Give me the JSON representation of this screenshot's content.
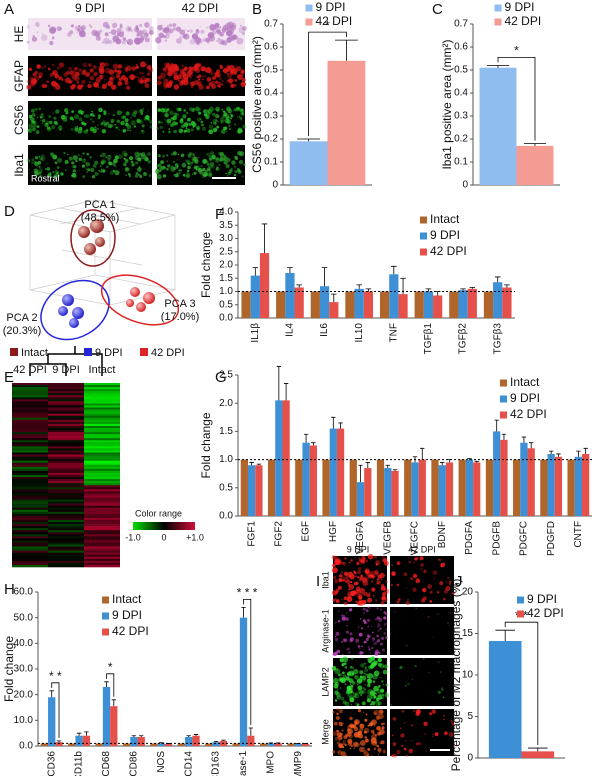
{
  "panel_labels": [
    "A",
    "B",
    "C",
    "D",
    "E",
    "F",
    "G",
    "H",
    "I",
    "J"
  ],
  "panel_a": {
    "columns": [
      "9 DPI",
      "42 DPI"
    ],
    "rows": [
      "HE",
      "GFAP",
      "CS56",
      "Iba1"
    ],
    "note": "Rostral"
  },
  "panel_d": {
    "axes": [
      {
        "name": "PCA 1",
        "share": "(48.5%)"
      },
      {
        "name": "PCA 2",
        "share": "(20.3%)"
      },
      {
        "name": "PCA 3",
        "share": "(17.0%)"
      }
    ],
    "legend": [
      {
        "name": "Intact",
        "color": "#8b1a1a"
      },
      {
        "name": "9 DPI",
        "color": "#2626d9"
      },
      {
        "name": "42 DPI",
        "color": "#e02424"
      }
    ]
  },
  "panel_e": {
    "columns": [
      "42 DPI",
      "9 DPI",
      "Intact"
    ],
    "color_range": "Color range",
    "scale_labels": [
      "-1.0",
      "0",
      "+1.0"
    ]
  },
  "panel_i": {
    "columns": [
      "9 DPI",
      "42 DPI"
    ],
    "rows": [
      "Iba1",
      "Arginase-1",
      "LAMP2",
      "Merge"
    ]
  },
  "chart_data": [
    {
      "type": "bar",
      "ylabel": "CS56 positive area (mm²)",
      "ylim": [
        0,
        0.7
      ],
      "yticks": [
        0,
        0.1,
        0.2,
        0.3,
        0.4,
        0.5,
        0.6,
        0.7
      ],
      "legend": "upper center",
      "significance": "*",
      "series": [
        {
          "name": "9 DPI",
          "color": "#8fbdf0",
          "values": [
            0.19
          ],
          "errors": [
            0.01
          ]
        },
        {
          "name": "42 DPI",
          "color": "#f49b94",
          "values": [
            0.54
          ],
          "errors": [
            0.09
          ]
        }
      ]
    },
    {
      "type": "bar",
      "ylabel": "Iba1 positive area (mm²)",
      "ylim": [
        0,
        0.7
      ],
      "yticks": [
        0,
        0.1,
        0.2,
        0.3,
        0.4,
        0.5,
        0.6,
        0.7
      ],
      "legend": "upper center",
      "significance": "*",
      "series": [
        {
          "name": "9 DPI",
          "color": "#8fbdf0",
          "values": [
            0.51
          ],
          "errors": [
            0.01
          ]
        },
        {
          "name": "42 DPI",
          "color": "#f49b94",
          "values": [
            0.17
          ],
          "errors": [
            0.01
          ]
        }
      ]
    },
    {
      "type": "bar",
      "ylabel": "Fold change",
      "ylim": [
        0,
        4
      ],
      "refline": 1,
      "legend": "upper right",
      "yticks": [
        {
          "value": 0,
          "label": "0.0"
        },
        0.5,
        {
          "value": 1,
          "label": "1.0"
        },
        1.5,
        {
          "value": 2,
          "label": "2.0"
        },
        2.5,
        {
          "value": 3,
          "label": "3.0"
        },
        3.5,
        {
          "value": 4,
          "label": "4.0"
        }
      ],
      "categories": [
        "IL1β",
        "IL4",
        "IL6",
        "IL10",
        "TNF",
        "TGFβ1",
        "TGFβ2",
        "TGFβ3"
      ],
      "series": [
        {
          "name": "Intact",
          "color": "#b0652b",
          "values": [
            1,
            1,
            1,
            1,
            1,
            1,
            1,
            1
          ]
        },
        {
          "name": "9 DPI",
          "color": "#3d8fd6",
          "values": [
            1.6,
            1.7,
            1.2,
            1.1,
            1.65,
            1.0,
            1.05,
            1.35
          ],
          "errors": [
            0.3,
            0.2,
            0.7,
            0.15,
            0.3,
            0.1,
            0.05,
            0.2
          ]
        },
        {
          "name": "42 DPI",
          "color": "#e5514a",
          "values": [
            2.45,
            1.15,
            0.6,
            1.0,
            0.9,
            0.85,
            1.1,
            1.15
          ],
          "errors": [
            1.1,
            0.1,
            0.3,
            0.1,
            0.6,
            0.15,
            0.05,
            0.1
          ]
        }
      ]
    },
    {
      "type": "bar",
      "ylabel": "Fold change",
      "ylim": [
        0,
        2.5
      ],
      "refline": 1,
      "legend": "upper right",
      "yticks": [
        {
          "value": 0,
          "label": "0.0"
        },
        0.5,
        {
          "value": 1,
          "label": "1.0"
        },
        1.5,
        {
          "value": 2,
          "label": "2.0"
        },
        2.5
      ],
      "categories": [
        "FGF1",
        "FGF2",
        "EGF",
        "HGF",
        "VEGFA",
        "VEGFB",
        "VEGFC",
        "BDNF",
        "PDGFA",
        "PDGFB",
        "PDGFC",
        "PDGFD",
        "CNTF"
      ],
      "series": [
        {
          "name": "Intact",
          "color": "#b0652b",
          "values": [
            1,
            1,
            1,
            1,
            1,
            1,
            1,
            1,
            1,
            1,
            1,
            1,
            1
          ]
        },
        {
          "name": "9 DPI",
          "color": "#3d8fd6",
          "values": [
            0.9,
            2.05,
            1.3,
            1.55,
            0.6,
            0.85,
            0.95,
            0.9,
            1.0,
            1.5,
            1.3,
            1.1,
            1.05
          ],
          "errors": [
            0.05,
            0.6,
            0.15,
            0.2,
            0.3,
            0.05,
            0.1,
            0.05,
            0.02,
            0.2,
            0.1,
            0.05,
            0.1
          ]
        },
        {
          "name": "42 DPI",
          "color": "#e5514a",
          "values": [
            0.9,
            2.05,
            1.25,
            1.55,
            0.85,
            0.8,
            1.0,
            0.95,
            0.95,
            1.35,
            1.2,
            1.05,
            1.1
          ],
          "errors": [
            0.02,
            0.3,
            0.05,
            0.1,
            0.1,
            0.02,
            0.2,
            0.05,
            0.02,
            0.1,
            0.1,
            0.05,
            0.1
          ]
        }
      ]
    },
    {
      "type": "bar",
      "ylabel": "Fold change",
      "ylim": [
        0,
        60
      ],
      "refline": 1,
      "legend": "upper left",
      "yticks": [
        {
          "value": 0,
          "label": "0.0"
        },
        {
          "value": 10,
          "label": "10.0"
        },
        {
          "value": 20,
          "label": "20.0"
        },
        {
          "value": 30,
          "label": "30.0"
        },
        {
          "value": 40,
          "label": "40.0"
        },
        {
          "value": 50,
          "label": "50.0"
        },
        {
          "value": 60,
          "label": "60.0"
        }
      ],
      "categories": [
        "CD36",
        "CD11b",
        "CD68",
        "CD86",
        "i NOS",
        "CD14",
        "CD163",
        "Arginase-1",
        "MPO",
        "MMP9"
      ],
      "significance": [
        "* *",
        null,
        "*",
        null,
        null,
        null,
        null,
        "* * *",
        null,
        null
      ],
      "series": [
        {
          "name": "Intact",
          "color": "#b0652b",
          "values": [
            1,
            1,
            1,
            1,
            1,
            1,
            1,
            1,
            1,
            1
          ]
        },
        {
          "name": "9 DPI",
          "color": "#3d8fd6",
          "values": [
            19,
            4,
            23,
            3.5,
            1,
            3.5,
            1.5,
            50,
            1,
            0.8
          ],
          "errors": [
            2.5,
            1,
            2,
            0.5,
            0.3,
            0.5,
            0.3,
            4,
            0.2,
            0.2
          ]
        },
        {
          "name": "42 DPI",
          "color": "#e5514a",
          "values": [
            1.5,
            4,
            15.5,
            3.5,
            0.8,
            4,
            2,
            4,
            1,
            0.8
          ],
          "errors": [
            0.5,
            1.5,
            2.5,
            0.5,
            0.2,
            0.5,
            0.3,
            3,
            0.2,
            0.2
          ]
        }
      ]
    },
    {
      "type": "bar",
      "ylabel": "Percentage of M2 macrophages (%)",
      "ylim": [
        0,
        20
      ],
      "yticks": [
        0,
        5,
        10,
        15,
        20
      ],
      "legend": "upper right",
      "significance": "* *",
      "series": [
        {
          "name": "9 DPI",
          "color": "#3d8fd6",
          "values": [
            14.1
          ],
          "errors": [
            1.3
          ]
        },
        {
          "name": "42 DPI",
          "color": "#e5514a",
          "values": [
            0.8
          ],
          "errors": [
            0.4
          ]
        }
      ]
    }
  ]
}
